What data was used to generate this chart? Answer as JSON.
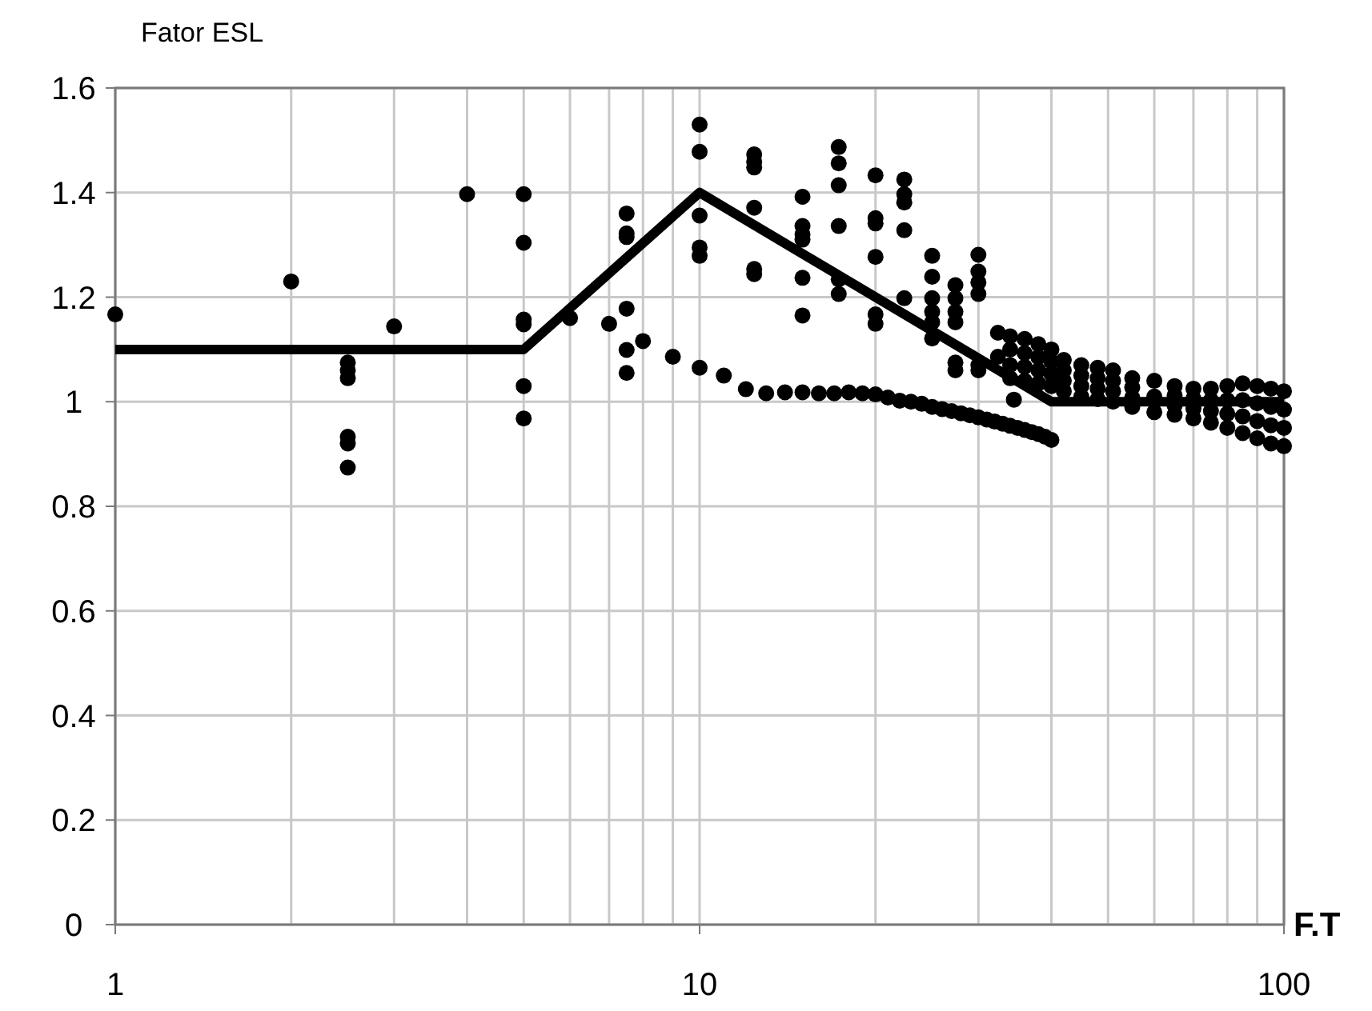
{
  "chart_data": {
    "type": "scatter",
    "ylabel": "Fator ESL",
    "xlabel": "F.T",
    "log": "x",
    "grid": true,
    "marker": "circle",
    "xlim": [
      1,
      100
    ],
    "ylim": [
      0,
      1.6
    ],
    "xticks": [
      1,
      {
        "value": 2,
        "label": null
      },
      {
        "value": 3,
        "label": null
      },
      {
        "value": 4,
        "label": null
      },
      {
        "value": 5,
        "label": null
      },
      {
        "value": 6,
        "label": null
      },
      {
        "value": 7,
        "label": null
      },
      {
        "value": 8,
        "label": null
      },
      {
        "value": 9,
        "label": null
      },
      10,
      {
        "value": 20,
        "label": null
      },
      {
        "value": 30,
        "label": null
      },
      {
        "value": 40,
        "label": null
      },
      {
        "value": 50,
        "label": null
      },
      {
        "value": 60,
        "label": null
      },
      {
        "value": 70,
        "label": null
      },
      {
        "value": 80,
        "label": null
      },
      {
        "value": 90,
        "label": null
      },
      100
    ],
    "yticks": [
      0,
      0.2,
      0.4,
      0.6,
      0.8,
      1,
      1.2,
      1.4,
      1.6
    ],
    "series": [
      {
        "color": "#000000",
        "x": [
          1,
          2,
          2.5,
          2.5,
          2.5,
          2.5,
          2.5,
          2.5,
          3,
          4,
          5,
          5,
          5,
          5,
          5,
          5,
          6,
          7,
          7.5,
          7.5,
          7.5,
          7.5,
          7.5,
          7.5,
          10,
          10,
          10,
          10,
          10,
          12.4,
          12.4,
          12.4,
          12.4,
          12.4,
          12.4,
          15,
          15,
          15,
          15,
          15,
          15,
          17.3,
          17.3,
          17.3,
          17.3,
          17.3,
          17.3,
          20,
          20,
          20,
          20,
          20,
          20,
          22.4,
          22.4,
          22.4,
          22.4,
          22.4,
          25,
          25,
          25,
          25,
          25,
          25,
          27.4,
          27.4,
          27.4,
          27.4,
          27.4,
          27.4,
          30,
          30,
          30,
          30,
          30,
          30,
          32.4,
          32.4,
          34.5
        ],
        "values": [
          1.167,
          1.23,
          1.075,
          1.06,
          1.045,
          0.933,
          0.92,
          0.874,
          1.144,
          1.397,
          1.397,
          1.304,
          1.157,
          1.148,
          1.03,
          0.968,
          1.16,
          1.149,
          1.36,
          1.322,
          1.315,
          1.178,
          1.099,
          1.055,
          1.53,
          1.478,
          1.356,
          1.295,
          1.279,
          1.473,
          1.459,
          1.448,
          1.371,
          1.254,
          1.244,
          1.392,
          1.336,
          1.32,
          1.31,
          1.237,
          1.165,
          1.487,
          1.456,
          1.414,
          1.336,
          1.234,
          1.206,
          1.433,
          1.351,
          1.341,
          1.277,
          1.167,
          1.149,
          1.425,
          1.397,
          1.381,
          1.328,
          1.198,
          1.279,
          1.239,
          1.198,
          1.172,
          1.152,
          1.121,
          1.223,
          1.198,
          1.172,
          1.152,
          1.075,
          1.06,
          1.281,
          1.249,
          1.228,
          1.206,
          1.07,
          1.06,
          1.132,
          1.086,
          1.004
        ]
      },
      {
        "color": "#000000",
        "x": [
          8,
          9,
          10,
          11,
          12,
          13,
          14,
          15,
          16,
          17,
          18,
          19,
          20,
          21,
          22,
          23,
          24,
          25,
          26,
          27,
          28,
          29,
          30,
          31,
          32,
          33,
          34,
          35,
          36,
          37,
          38,
          39,
          40
        ],
        "values": [
          1.116,
          1.086,
          1.065,
          1.05,
          1.024,
          1.016,
          1.018,
          1.018,
          1.016,
          1.016,
          1.018,
          1.016,
          1.014,
          1.008,
          1.002,
          1.0,
          0.996,
          0.99,
          0.986,
          0.982,
          0.978,
          0.974,
          0.97,
          0.966,
          0.962,
          0.958,
          0.954,
          0.95,
          0.946,
          0.942,
          0.938,
          0.933,
          0.927
        ]
      },
      {
        "color": "#000000",
        "x": [
          34,
          34,
          34,
          34,
          36,
          36,
          36,
          36,
          38,
          38,
          38,
          38,
          40,
          40,
          40,
          40,
          42,
          42,
          42,
          42,
          45,
          45,
          45,
          45,
          48,
          48,
          48,
          48,
          51,
          51,
          51,
          51,
          55,
          55,
          55,
          55,
          60,
          60,
          60,
          65,
          65,
          65,
          65,
          70,
          70,
          70,
          70,
          75,
          75,
          75,
          75,
          80,
          80,
          80,
          80,
          85,
          85,
          85,
          85,
          90,
          90,
          90,
          90,
          95,
          95,
          95,
          95,
          100,
          100,
          100,
          100
        ],
        "values": [
          1.125,
          1.1,
          1.07,
          1.045,
          1.12,
          1.093,
          1.067,
          1.04,
          1.11,
          1.085,
          1.06,
          1.035,
          1.1,
          1.077,
          1.053,
          1.03,
          1.08,
          1.06,
          1.04,
          1.02,
          1.07,
          1.05,
          1.03,
          1.01,
          1.065,
          1.045,
          1.025,
          1.005,
          1.06,
          1.04,
          1.02,
          1.0,
          1.045,
          1.027,
          1.008,
          0.99,
          1.04,
          1.01,
          0.98,
          1.03,
          1.012,
          0.993,
          0.975,
          1.025,
          1.006,
          0.987,
          0.968,
          1.025,
          1.003,
          0.982,
          0.96,
          1.03,
          1.003,
          0.977,
          0.95,
          1.035,
          1.003,
          0.972,
          0.94,
          1.03,
          0.997,
          0.963,
          0.93,
          1.025,
          0.99,
          0.955,
          0.92,
          1.02,
          0.985,
          0.95,
          0.915
        ]
      },
      {
        "type": "line",
        "color": "#000000",
        "marker": "none",
        "x": [
          1,
          5,
          10,
          40,
          100
        ],
        "values": [
          1.1,
          1.1,
          1.4,
          1.0,
          1.0
        ]
      }
    ]
  }
}
